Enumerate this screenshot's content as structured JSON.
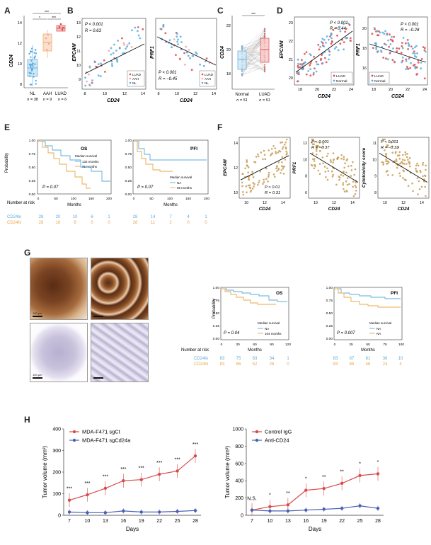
{
  "labels": {
    "A": "A",
    "B": "B",
    "C": "C",
    "D": "D",
    "E": "E",
    "F": "F",
    "G": "G",
    "H": "H"
  },
  "colors": {
    "blue": "#5aabdc",
    "orange": "#e8a74a",
    "red": "#d94b4b",
    "tan": "#c9a15c",
    "pink": "#f2a5a5",
    "navy": "#4a5fb4",
    "gray": "#888888",
    "brown": "#6b3b1f",
    "lightbrown": "#b37445",
    "purple": "#b7b0d1"
  },
  "panelA": {
    "ylabel": "CD24",
    "yticks": [
      "8",
      "10",
      "12",
      "14"
    ],
    "groups": [
      "NL",
      "AAH",
      "LUAD"
    ],
    "ns": [
      "n = 38",
      "n = 9",
      "n = 6"
    ],
    "sig": [
      "***",
      "*",
      "***"
    ]
  },
  "panelB": {
    "left": {
      "ylabel": "EPCAM",
      "xlabel": "CD24",
      "p": "P < 0.001",
      "r": "R = 0.63",
      "xticks": [
        "8",
        "10",
        "12",
        "14"
      ],
      "yticks": [
        "9",
        "10",
        "11",
        "12",
        "13"
      ]
    },
    "right": {
      "ylabel": "PRF1",
      "xlabel": "CD24",
      "p": "P < 0.001",
      "r": "R = −0.45",
      "xticks": [
        "8",
        "10",
        "12",
        "14"
      ],
      "yticks": [
        "4",
        "6",
        "8"
      ]
    },
    "legend": [
      "LUAD",
      "AAH",
      "NL"
    ]
  },
  "panelC": {
    "ylabel": "CD24",
    "groups": [
      "Normal",
      "LUAD"
    ],
    "ns": [
      "n = 51",
      "n = 51"
    ],
    "sig": "***",
    "yticks": [
      "18",
      "20",
      "22"
    ]
  },
  "panelD": {
    "left": {
      "ylabel": "EPCAM",
      "xlabel": "CD24",
      "p": "P < 0.001",
      "r": "R = 0.44",
      "xticks": [
        "18",
        "20",
        "22",
        "24"
      ],
      "yticks": [
        "20",
        "21",
        "22",
        "23"
      ]
    },
    "right": {
      "ylabel": "PRF1",
      "xlabel": "CD24",
      "p": "P < 0.001",
      "r": "R = −0.28",
      "xticks": [
        "18",
        "20",
        "22",
        "24"
      ],
      "yticks": [
        "16",
        "18",
        "20"
      ]
    },
    "legend": [
      "LUAD",
      "Normal"
    ]
  },
  "panelE": {
    "os": {
      "title": "OS",
      "legend_title": "Median survival",
      "legend": [
        "132 months",
        "85 months"
      ],
      "p": "P = 0.07",
      "xticks": [
        "0",
        "50",
        "100",
        "150",
        "200"
      ],
      "xlabel": "Months"
    },
    "pfi": {
      "title": "PFI",
      "legend_title": "Median survival",
      "legend": [
        "NA",
        "86 months"
      ],
      "p": "P = 0.07",
      "xticks": [
        "0",
        "50",
        "100",
        "150",
        "200"
      ],
      "xlabel": "Months"
    },
    "ylabel": "Probability",
    "yticks": [
      "0.00",
      "0.25",
      "0.50",
      "0.75",
      "1.00"
    ],
    "risk_title": "Number at risk",
    "risk_labels": [
      "CD24lo",
      "CD24hi"
    ],
    "os_risk": [
      [
        "28",
        "20",
        "10",
        "6",
        "1"
      ],
      [
        "28",
        "16",
        "8",
        "0",
        "0"
      ]
    ],
    "pfi_risk": [
      [
        "28",
        "14",
        "7",
        "4",
        "1"
      ],
      [
        "28",
        "11",
        "2",
        "0",
        "0"
      ]
    ]
  },
  "panelF": {
    "plots": [
      {
        "ylabel": "EPCAM",
        "xlabel": "CD24",
        "p": "P < 0.01",
        "r": "R = 0.31",
        "yticks": [
          "10",
          "12",
          "14"
        ]
      },
      {
        "ylabel": "PRF1",
        "xlabel": "CD24",
        "p": "P < 0.001",
        "r": "R = −0.37",
        "yticks": [
          "6",
          "8",
          "10",
          "12"
        ]
      },
      {
        "ylabel": "Cytotoxicity score",
        "xlabel": "CD24",
        "p": "P < 0.001",
        "r": "R = −0.33",
        "yticks": [
          "8",
          "9",
          "10",
          "11"
        ]
      }
    ],
    "xticks": [
      "10",
      "12",
      "14"
    ]
  },
  "panelG": {
    "scale_labels": [
      "100 μm",
      "",
      "100 μm",
      ""
    ],
    "os": {
      "title": "OS",
      "legend_title": "Median survival",
      "legend": [
        "NA",
        "104 months"
      ],
      "p": "P = 0.04",
      "xticks": [
        "0",
        "30",
        "60",
        "90",
        "120"
      ],
      "xlabel": "Months"
    },
    "pfi": {
      "title": "PFI",
      "legend_title": "Median survival",
      "legend": [
        "NA",
        "NA"
      ],
      "p": "P = 0.007",
      "xticks": [
        "0",
        "25",
        "50",
        "75",
        "100"
      ],
      "xlabel": "Months"
    },
    "ylabel": "Probability",
    "yticks": [
      "0.00",
      "0.25",
      "0.50",
      "0.75",
      "1.00"
    ],
    "risk_title": "Number at risk",
    "risk_labels": [
      "CD24lo",
      "CD24hi"
    ],
    "os_risk": [
      [
        "83",
        "75",
        "63",
        "34",
        "1"
      ],
      [
        "83",
        "66",
        "52",
        "26",
        "0"
      ]
    ],
    "pfi_risk": [
      [
        "83",
        "67",
        "61",
        "36",
        "10"
      ],
      [
        "83",
        "65",
        "46",
        "24",
        "4"
      ]
    ]
  },
  "chart_data": [
    {
      "type": "line",
      "panel": "H-left",
      "x": [
        7,
        10,
        13,
        16,
        19,
        22,
        25,
        28
      ],
      "series": [
        {
          "name": "MDA-F471 sgCt",
          "values": [
            70,
            95,
            125,
            160,
            165,
            190,
            205,
            275
          ]
        },
        {
          "name": "MDA-F471 sgCd24a",
          "values": [
            15,
            12,
            12,
            20,
            15,
            15,
            18,
            22
          ]
        }
      ],
      "significance": [
        "***",
        "***",
        "***",
        "***",
        "***",
        "***",
        "***",
        "***"
      ],
      "xlabel": "Days",
      "ylabel": "Tumor volume (mm³)",
      "ylim": [
        0,
        400
      ],
      "yticks": [
        "0",
        "100",
        "200",
        "300",
        "400"
      ],
      "xticks": [
        "7",
        "10",
        "13",
        "16",
        "19",
        "22",
        "25",
        "28"
      ]
    },
    {
      "type": "line",
      "panel": "H-right",
      "x": [
        7,
        10,
        13,
        16,
        19,
        22,
        25,
        28
      ],
      "series": [
        {
          "name": "Control IgG",
          "values": [
            60,
            100,
            120,
            290,
            310,
            370,
            460,
            480
          ]
        },
        {
          "name": "Anti-CD24",
          "values": [
            60,
            50,
            50,
            60,
            70,
            80,
            110,
            80
          ]
        }
      ],
      "significance": [
        "N.S.",
        "*",
        "**",
        "*",
        "**",
        "**",
        "*",
        "*"
      ],
      "xlabel": "Days",
      "ylabel": "Tumor volume (mm³)",
      "ylim": [
        0,
        1000
      ],
      "yticks": [
        "0",
        "200",
        "400",
        "600",
        "800",
        "1000"
      ],
      "xticks": [
        "7",
        "10",
        "13",
        "16",
        "19",
        "22",
        "25",
        "28"
      ]
    }
  ]
}
